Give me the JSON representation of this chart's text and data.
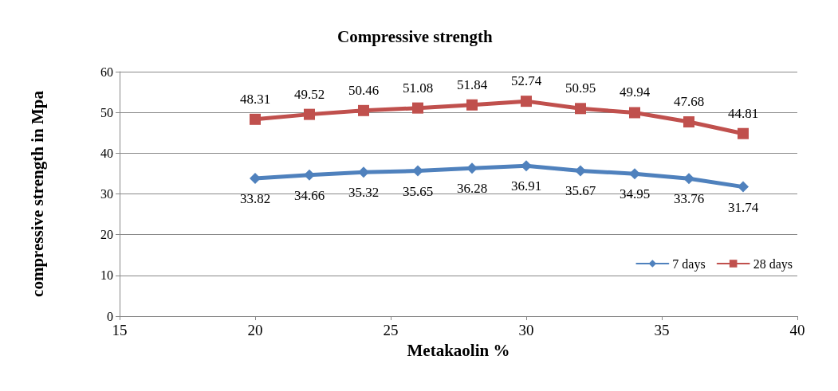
{
  "chart_data": {
    "type": "line",
    "title": "Compressive strength",
    "xlabel": "Metakaolin %",
    "ylabel": "compressive strength in Mpa",
    "x": [
      20,
      22,
      24,
      26,
      28,
      30,
      32,
      34,
      36,
      38
    ],
    "series": [
      {
        "name": "7 days",
        "color": "#4f81bd",
        "marker": "diamond",
        "values": [
          33.82,
          34.66,
          35.32,
          35.65,
          36.28,
          36.91,
          35.67,
          34.95,
          33.76,
          31.74
        ]
      },
      {
        "name": "28 days",
        "color": "#c0504d",
        "marker": "square",
        "values": [
          48.31,
          49.52,
          50.46,
          51.08,
          51.84,
          52.74,
          50.95,
          49.94,
          47.68,
          44.81
        ]
      }
    ],
    "xlim": [
      15,
      40
    ],
    "xticks": [
      15,
      20,
      25,
      30,
      35,
      40
    ],
    "ylim": [
      0,
      60
    ],
    "yticks": [
      0,
      10,
      20,
      30,
      40,
      50,
      60
    ],
    "grid": "y",
    "legend": "bottom right",
    "data_labels": true,
    "line_style": "solid"
  }
}
